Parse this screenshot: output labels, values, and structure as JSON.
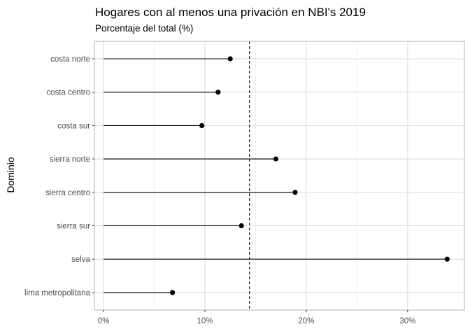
{
  "chart_data": {
    "type": "lollipop",
    "title": "Hogares con al menos una privación en NBI's 2019",
    "subtitle": "Porcentaje del total (%)",
    "ylabel": "Dominio",
    "xlabel": "",
    "categories": [
      "costa norte",
      "costa centro",
      "costa sur",
      "sierra norte",
      "sierra centro",
      "sierra sur",
      "selva",
      "lima metropolitana"
    ],
    "values": [
      12.5,
      11.3,
      9.7,
      17.0,
      18.9,
      13.6,
      33.9,
      6.8
    ],
    "reference_line": 14.4,
    "xlim": [
      -0.9,
      35.6
    ],
    "xticks": [
      0,
      10,
      20,
      30
    ],
    "xtick_labels": [
      "0%",
      "10%",
      "20%",
      "30%"
    ],
    "grid": true,
    "legend": "none",
    "colors": {
      "points": "#000000",
      "segments": "#000000",
      "reference_line": "#000000",
      "grid_major": "#d9d9d9",
      "grid_minor": "#ebebeb",
      "panel_border": "#b3b3b3"
    }
  }
}
